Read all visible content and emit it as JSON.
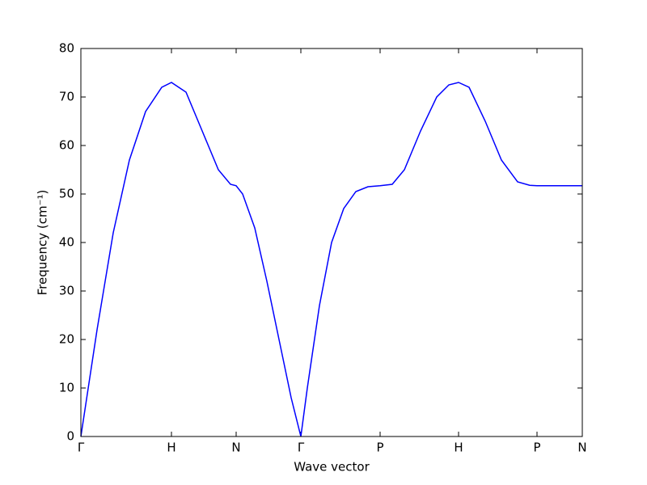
{
  "chart_data": {
    "type": "line",
    "xlabel": "Wave vector",
    "ylabel": "Frequency (cm⁻¹)",
    "xlim": [
      0,
      6.2
    ],
    "ylim": [
      0,
      80
    ],
    "xticks": [
      {
        "value": 0,
        "label": "Γ"
      },
      {
        "value": 1.12,
        "label": "H"
      },
      {
        "value": 1.92,
        "label": "N"
      },
      {
        "value": 2.72,
        "label": "Γ"
      },
      {
        "value": 3.7,
        "label": "P"
      },
      {
        "value": 4.67,
        "label": "H"
      },
      {
        "value": 5.64,
        "label": "P"
      },
      {
        "value": 6.2,
        "label": "N"
      }
    ],
    "yticks": [
      0,
      10,
      20,
      30,
      40,
      50,
      60,
      70,
      80
    ],
    "x": [
      0,
      0.2,
      0.4,
      0.6,
      0.8,
      1.0,
      1.12,
      1.3,
      1.5,
      1.7,
      1.85,
      1.92,
      2.0,
      2.15,
      2.3,
      2.45,
      2.6,
      2.72,
      2.8,
      2.95,
      3.1,
      3.25,
      3.4,
      3.55,
      3.7,
      3.85,
      4.0,
      4.2,
      4.4,
      4.55,
      4.67,
      4.8,
      5.0,
      5.2,
      5.4,
      5.55,
      5.64,
      5.9,
      6.2
    ],
    "series": [
      {
        "color": "#0000ff",
        "values": [
          0,
          22,
          42,
          57,
          67,
          72,
          73,
          71,
          63,
          55,
          52,
          51.7,
          50,
          43,
          32,
          20,
          8,
          0,
          10,
          27,
          40,
          47,
          50.5,
          51.5,
          51.7,
          52,
          55,
          63,
          70,
          72.5,
          73,
          72,
          65,
          57,
          52.5,
          51.8,
          51.7,
          51.7,
          51.7
        ]
      }
    ]
  }
}
